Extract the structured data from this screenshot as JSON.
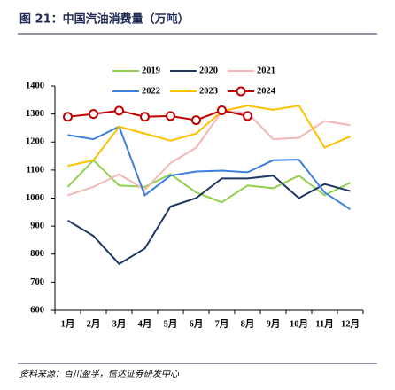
{
  "chart_data": {
    "type": "line",
    "title": "图 21：中国汽油消费量（万吨）",
    "source": "资料来源：百川盈孚，信达证券研发中心",
    "categories": [
      "1月",
      "2月",
      "3月",
      "4月",
      "5月",
      "6月",
      "7月",
      "8月",
      "9月",
      "10月",
      "11月",
      "12月"
    ],
    "series": [
      {
        "name": "2019",
        "color": "#92d050",
        "values": [
          1040,
          1135,
          1045,
          1040,
          1085,
          1020,
          985,
          1045,
          1035,
          1080,
          1010,
          1055
        ]
      },
      {
        "name": "2020",
        "color": "#1f3864",
        "values": [
          920,
          865,
          765,
          820,
          970,
          1000,
          1070,
          1070,
          1080,
          1000,
          1050,
          1025
        ]
      },
      {
        "name": "2021",
        "color": "#f4b6b6",
        "values": [
          1010,
          1040,
          1085,
          1030,
          1125,
          1180,
          1310,
          1305,
          1210,
          1215,
          1275,
          1260
        ]
      },
      {
        "name": "2022",
        "color": "#3d7fe0",
        "values": [
          1225,
          1210,
          1255,
          1010,
          1080,
          1095,
          1098,
          1092,
          1135,
          1137,
          1020,
          960
        ]
      },
      {
        "name": "2023",
        "color": "#ffc000",
        "values": [
          1115,
          1135,
          1255,
          1230,
          1205,
          1230,
          1310,
          1330,
          1315,
          1330,
          1180,
          1220
        ]
      },
      {
        "name": "2024",
        "color": "#c00000",
        "marker": "circle",
        "values": [
          1290,
          1300,
          1312,
          1290,
          1293,
          1278,
          1313,
          1293,
          null,
          null,
          null,
          null
        ]
      }
    ],
    "ylim": [
      600,
      1400
    ],
    "yticks": [
      600,
      700,
      800,
      900,
      1000,
      1100,
      1200,
      1300,
      1400
    ],
    "grid": false,
    "legend": "top"
  }
}
